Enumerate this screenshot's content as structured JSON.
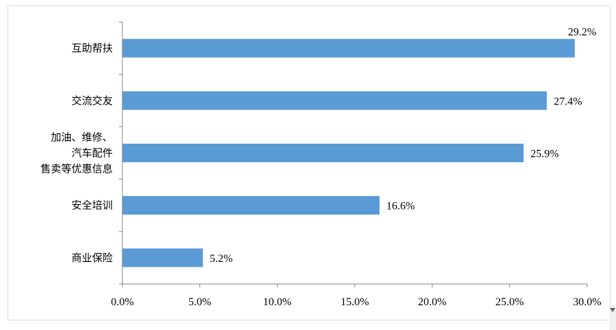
{
  "chart_data": {
    "type": "bar",
    "orientation": "horizontal",
    "categories": [
      [
        "互助帮扶"
      ],
      [
        "交流交友"
      ],
      [
        "加油、维修、",
        "汽车配件",
        "售卖等优惠信息"
      ],
      [
        "安全培训"
      ],
      [
        "商业保险"
      ]
    ],
    "values": [
      29.2,
      27.4,
      25.9,
      16.6,
      5.2
    ],
    "value_labels": [
      "29.2%",
      "27.4%",
      "25.9%",
      "16.6%",
      "5.2%"
    ],
    "xlim": [
      0,
      30
    ],
    "xticks": [
      0,
      5,
      10,
      15,
      20,
      25,
      30
    ],
    "xtick_labels": [
      "0.0%",
      "5.0%",
      "10.0%",
      "15.0%",
      "20.0%",
      "25.0%",
      "30.0%"
    ],
    "bar_color": "#5b9bd5",
    "grid": false,
    "legend": "none",
    "title": "",
    "xlabel": "",
    "ylabel": ""
  }
}
